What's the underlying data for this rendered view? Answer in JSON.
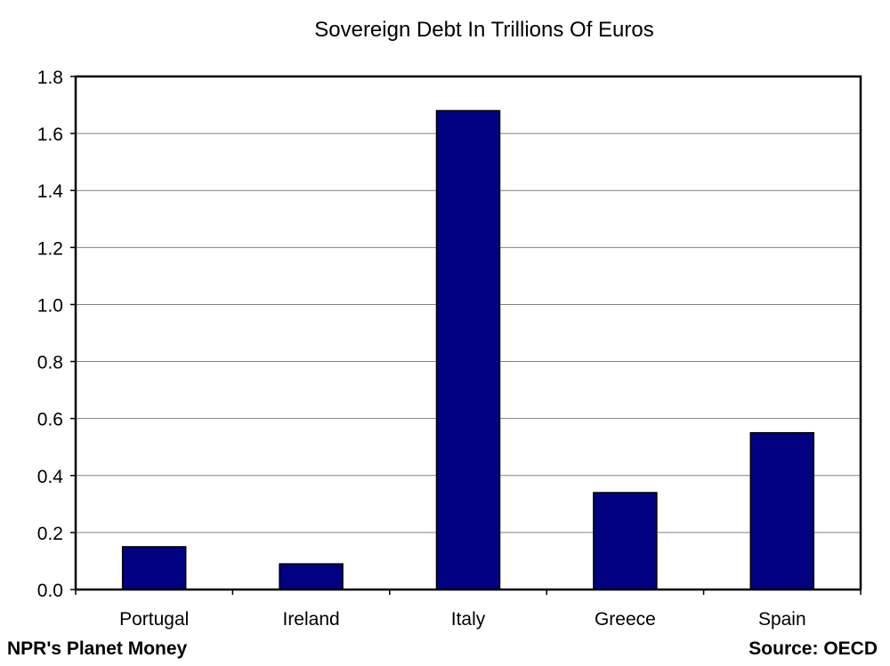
{
  "chart_data": {
    "type": "bar",
    "title": "Sovereign Debt In Trillions Of Euros",
    "xlabel": "",
    "ylabel": "",
    "categories": [
      "Portugal",
      "Ireland",
      "Italy",
      "Greece",
      "Spain"
    ],
    "values": [
      0.15,
      0.09,
      1.68,
      0.34,
      0.55
    ],
    "ylim": [
      0,
      1.8
    ],
    "yticks": [
      "0.0",
      "0.2",
      "0.4",
      "0.6",
      "0.8",
      "1.0",
      "1.2",
      "1.4",
      "1.6",
      "1.8"
    ],
    "grid": true,
    "legend": "none",
    "bar_color": "#000080"
  },
  "footer": {
    "left": "NPR's Planet Money",
    "right": "Source: OECD"
  }
}
